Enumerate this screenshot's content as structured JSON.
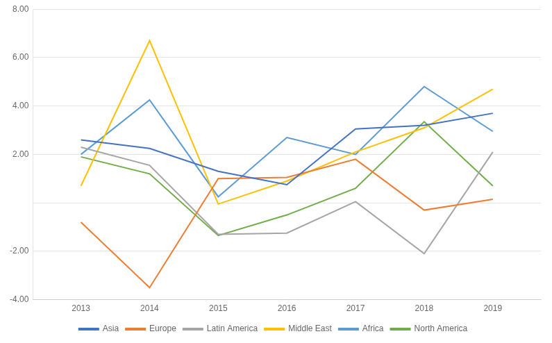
{
  "chart_data": {
    "type": "line",
    "x": [
      2013,
      2014,
      2015,
      2016,
      2017,
      2018,
      2019
    ],
    "series": [
      {
        "name": "Asia",
        "color": "#4472C4",
        "values": [
          2.6,
          2.25,
          1.3,
          0.75,
          3.05,
          3.2,
          3.7
        ]
      },
      {
        "name": "Europe",
        "color": "#ED7D31",
        "values": [
          -0.8,
          -3.5,
          1.0,
          1.05,
          1.8,
          -0.3,
          0.15
        ]
      },
      {
        "name": "Latin America",
        "color": "#A5A5A5",
        "values": [
          2.3,
          1.55,
          -1.3,
          -1.25,
          0.05,
          -2.1,
          2.1
        ]
      },
      {
        "name": "Middle East",
        "color": "#FFC000",
        "values": [
          0.7,
          6.7,
          -0.05,
          0.9,
          2.1,
          3.1,
          4.7
        ]
      },
      {
        "name": "Africa",
        "color": "#5B9BD5",
        "values": [
          2.0,
          4.25,
          0.25,
          2.7,
          2.0,
          4.8,
          2.95
        ]
      },
      {
        "name": "North America",
        "color": "#70AD47",
        "values": [
          1.9,
          1.2,
          -1.35,
          -0.5,
          0.6,
          3.35,
          0.7
        ]
      }
    ],
    "xlim": [
      2012.3,
      2019.7
    ],
    "xticks": [
      2013,
      2014,
      2015,
      2016,
      2017,
      2018,
      2019
    ],
    "ylim": [
      -4.0,
      8.0
    ],
    "yticks": [
      {
        "value": -4.0,
        "label": "-4.00"
      },
      {
        "value": -2.0,
        "label": "-2.00"
      },
      {
        "value": 0.0,
        "label": null
      },
      {
        "value": 2.0,
        "label": "2.00"
      },
      {
        "value": 4.0,
        "label": "4.00"
      },
      {
        "value": 6.0,
        "label": "6.00"
      },
      {
        "value": 8.0,
        "label": "8.00"
      }
    ],
    "grid": "y",
    "legend": "bottom"
  }
}
